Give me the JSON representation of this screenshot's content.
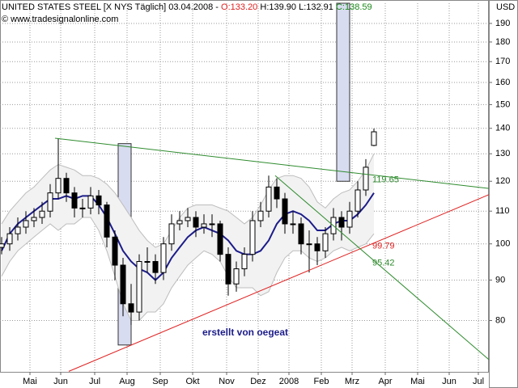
{
  "chart_data": {
    "type": "candlestick",
    "title": "UNITED STATES STEEL [X NYS  Täglich] 03.04.2008 -",
    "header_labels": {
      "open": "O:133.20",
      "high": "H:139.90",
      "low": "L:132.91",
      "close": "C:138.59"
    },
    "subtitle": "© www.tradesignalonline.com",
    "currency": "USD",
    "log_scale": true,
    "grid": true,
    "up_color": "#ffffff",
    "down_color": "#000000",
    "x": [
      1,
      6,
      11,
      16,
      21,
      26,
      31,
      36,
      41,
      46,
      51,
      56,
      61,
      66,
      71,
      76,
      81,
      86,
      91,
      96,
      101,
      106,
      111,
      116,
      121,
      126,
      131,
      136,
      141,
      146,
      151,
      156,
      161,
      166,
      171,
      176,
      181,
      186,
      191,
      196,
      201,
      206,
      211,
      216,
      221,
      226,
      231
    ],
    "open": [
      99,
      100,
      103,
      105,
      107,
      108,
      110,
      116,
      121,
      116,
      111,
      111,
      115,
      112,
      102,
      94,
      84,
      82,
      95,
      95,
      92,
      100,
      106,
      107,
      108,
      105,
      106,
      106,
      97,
      89,
      93,
      97,
      107,
      110,
      118,
      114,
      106,
      106,
      100,
      100,
      98,
      103,
      108,
      105,
      110,
      117,
      133.2
    ],
    "high": [
      102,
      105,
      108,
      110,
      111,
      113,
      119,
      136,
      123,
      118,
      114,
      118,
      117,
      113,
      104,
      96,
      89,
      97,
      99,
      97,
      102,
      109,
      110,
      111,
      110,
      109,
      109,
      107,
      99,
      95,
      99,
      110,
      113,
      122,
      121,
      116,
      110,
      108,
      104,
      102,
      105,
      111,
      110,
      113,
      120,
      128,
      139.9
    ],
    "low": [
      97,
      98,
      101,
      103,
      105,
      106,
      108,
      114,
      113,
      108,
      108,
      109,
      109,
      99,
      90,
      81,
      79,
      80,
      92,
      89,
      90,
      98,
      104,
      105,
      102,
      103,
      102,
      95,
      86,
      87,
      91,
      95,
      105,
      108,
      111,
      103,
      103,
      97,
      92,
      94,
      96,
      101,
      101,
      103,
      108,
      115,
      132.91
    ],
    "close": [
      100,
      103,
      105,
      107,
      108,
      110,
      116,
      121,
      116,
      111,
      111,
      115,
      112,
      102,
      94,
      84,
      82,
      95,
      95,
      92,
      100,
      106,
      107,
      108,
      105,
      106,
      106,
      97,
      89,
      93,
      97,
      107,
      110,
      118,
      114,
      106,
      106,
      100,
      100,
      98,
      103,
      108,
      105,
      110,
      117,
      125,
      138.59
    ],
    "series": [
      {
        "color": "#bdbdbd",
        "values": [
          106,
          110,
          113,
          116,
          118,
          121,
          124,
          126,
          125,
          124,
          122,
          122,
          121,
          119,
          116,
          112,
          108,
          104,
          101,
          99,
          100,
          104,
          108,
          111,
          112,
          112,
          112,
          111,
          110,
          108,
          106,
          108,
          112,
          117,
          121,
          122,
          122,
          121,
          118,
          113,
          111,
          114,
          116,
          117,
          120,
          124,
          130
        ]
      },
      {
        "color": "#bdbdbd",
        "values": [
          91,
          95,
          98,
          100,
          102,
          104,
          106,
          104,
          106,
          106,
          108,
          108,
          104,
          98,
          91,
          84,
          80,
          80,
          82,
          82,
          84,
          88,
          91,
          94,
          96,
          98,
          97,
          95,
          91,
          88,
          88,
          88,
          86,
          87,
          92,
          96,
          98,
          98,
          96,
          95,
          96,
          98,
          99,
          98,
          99,
          100,
          103
        ]
      },
      {
        "color": "#1c1c8a",
        "values": [
          98,
          103,
          106,
          108,
          110,
          112,
          114,
          114,
          115,
          114,
          115,
          115,
          112,
          108,
          103,
          98,
          95,
          93,
          92,
          90,
          92,
          96,
          99,
          102,
          104,
          105,
          104,
          103,
          101,
          98,
          97,
          97,
          98,
          101,
          106,
          109,
          110,
          109,
          107,
          104,
          104,
          106,
          107,
          107,
          109,
          112,
          116
        ]
      }
    ],
    "trendlines": [
      {
        "color": "#2e8b2e",
        "x": [
          34,
          302
        ],
        "values": [
          136,
          117.5
        ]
      },
      {
        "color": "#e02020",
        "x": [
          42.5,
          302
        ],
        "values": [
          69,
          115.4
        ]
      },
      {
        "color": "#2e8b2e",
        "x": [
          170,
          302
        ],
        "values": [
          122,
          71.4
        ]
      }
    ],
    "boxes": [
      {
        "x": [
          73,
          81
        ],
        "values": [
          74.5,
          133.9
        ]
      },
      {
        "x": [
          208,
          216
        ],
        "values": [
          120,
          201.5
        ]
      }
    ],
    "annotations": [
      {
        "text": "119.65",
        "value": 119.65,
        "x": 230,
        "color": "#2e8b2e"
      },
      {
        "text": "99.79",
        "value": 99.79,
        "x": 230,
        "color": "#e02020"
      },
      {
        "text": "95.42",
        "value": 95.42,
        "x": 230,
        "color": "#2e8b2e"
      },
      {
        "text": "erstellt von oegeat",
        "value": 76.6,
        "x": 151.5,
        "color": "#1c1c8a"
      }
    ],
    "xlim": [
      0,
      302
    ],
    "ylim": [
      68.9,
      201.5
    ],
    "yticks": [
      80,
      90,
      100,
      110,
      120,
      130,
      140,
      150,
      160,
      170,
      180,
      190
    ],
    "xticks": [
      {
        "value": 18.5,
        "label": "Mai"
      },
      {
        "value": 37.5,
        "label": "Jun"
      },
      {
        "value": 58.5,
        "label": "Jul"
      },
      {
        "value": 78.5,
        "label": "Aug"
      },
      {
        "value": 99,
        "label": "Sep"
      },
      {
        "value": 119,
        "label": "Okt"
      },
      {
        "value": 140,
        "label": "Nov"
      },
      {
        "value": 159.5,
        "label": "Dez"
      },
      {
        "value": 178.5,
        "label": "2008"
      },
      {
        "value": 198.5,
        "label": "Feb"
      },
      {
        "value": 217.5,
        "label": "Mrz"
      },
      {
        "value": 238,
        "label": "Apr"
      },
      {
        "value": 258,
        "label": "Mai"
      },
      {
        "value": 277.5,
        "label": "Jun"
      },
      {
        "value": 295.5,
        "label": "Jul"
      }
    ]
  }
}
